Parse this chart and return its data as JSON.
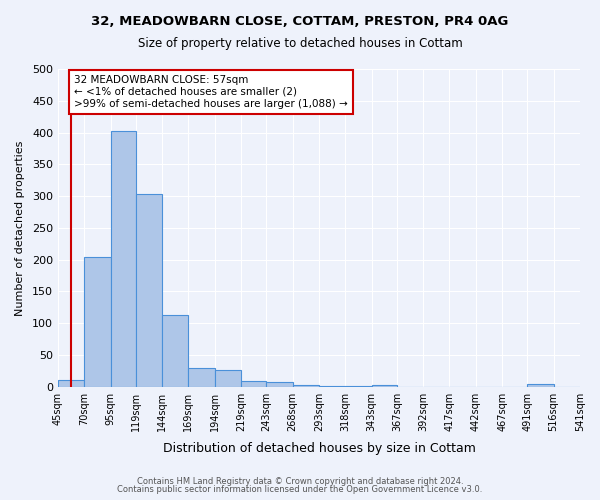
{
  "title1": "32, MEADOWBARN CLOSE, COTTAM, PRESTON, PR4 0AG",
  "title2": "Size of property relative to detached houses in Cottam",
  "xlabel": "Distribution of detached houses by size in Cottam",
  "ylabel": "Number of detached properties",
  "footnote1": "Contains HM Land Registry data © Crown copyright and database right 2024.",
  "footnote2": "Contains public sector information licensed under the Open Government Licence v3.0.",
  "bar_edges": [
    45,
    70,
    95,
    119,
    144,
    169,
    194,
    219,
    243,
    268,
    293,
    318,
    343,
    367,
    392,
    417,
    442,
    467,
    491,
    516,
    541
  ],
  "bar_heights": [
    10,
    204,
    403,
    303,
    113,
    30,
    27,
    9,
    7,
    3,
    2,
    2,
    3,
    0,
    0,
    0,
    0,
    0,
    4,
    0
  ],
  "bar_color": "#aec6e8",
  "bar_edge_color": "#4a90d9",
  "vline_x": 57,
  "vline_color": "#cc0000",
  "annotation_text": "32 MEADOWBARN CLOSE: 57sqm\n← <1% of detached houses are smaller (2)\n>99% of semi-detached houses are larger (1,088) →",
  "annotation_box_color": "#ffffff",
  "annotation_box_edge": "#cc0000",
  "ylim": [
    0,
    500
  ],
  "yticks": [
    0,
    50,
    100,
    150,
    200,
    250,
    300,
    350,
    400,
    450,
    500
  ],
  "bg_color": "#eef2fb",
  "grid_color": "#ffffff",
  "tick_labels": [
    "45sqm",
    "70sqm",
    "95sqm",
    "119sqm",
    "144sqm",
    "169sqm",
    "194sqm",
    "219sqm",
    "243sqm",
    "268sqm",
    "293sqm",
    "318sqm",
    "343sqm",
    "367sqm",
    "392sqm",
    "417sqm",
    "442sqm",
    "467sqm",
    "491sqm",
    "516sqm",
    "541sqm"
  ]
}
